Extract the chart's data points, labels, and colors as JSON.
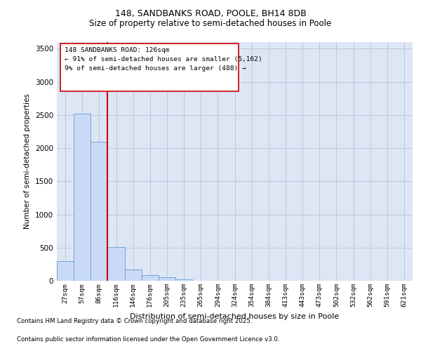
{
  "title_line1": "148, SANDBANKS ROAD, POOLE, BH14 8DB",
  "title_line2": "Size of property relative to semi-detached houses in Poole",
  "xlabel": "Distribution of semi-detached houses by size in Poole",
  "ylabel": "Number of semi-detached properties",
  "bins": [
    "27sqm",
    "57sqm",
    "86sqm",
    "116sqm",
    "146sqm",
    "176sqm",
    "205sqm",
    "235sqm",
    "265sqm",
    "294sqm",
    "324sqm",
    "354sqm",
    "384sqm",
    "413sqm",
    "443sqm",
    "473sqm",
    "502sqm",
    "532sqm",
    "562sqm",
    "591sqm",
    "621sqm"
  ],
  "values": [
    300,
    2520,
    2100,
    510,
    170,
    90,
    50,
    20,
    5,
    2,
    1,
    0,
    0,
    0,
    0,
    0,
    0,
    0,
    0,
    0,
    0
  ],
  "bar_color": "#c9daf8",
  "bar_edge_color": "#6699cc",
  "grid_color": "#c0c8d8",
  "bg_color": "#dce6f5",
  "red_line_label": "148 SANDBANKS ROAD: 126sqm",
  "annotation_line2": "← 91% of semi-detached houses are smaller (5,162)",
  "annotation_line3": "9% of semi-detached houses are larger (488) →",
  "ylim": [
    0,
    3600
  ],
  "yticks": [
    0,
    500,
    1000,
    1500,
    2000,
    2500,
    3000,
    3500
  ],
  "footnote1": "Contains HM Land Registry data © Crown copyright and database right 2025.",
  "footnote2": "Contains public sector information licensed under the Open Government Licence v3.0.",
  "annotation_box_color": "#cc0000",
  "vline_color": "#cc0000",
  "vline_x_index": 2.5
}
